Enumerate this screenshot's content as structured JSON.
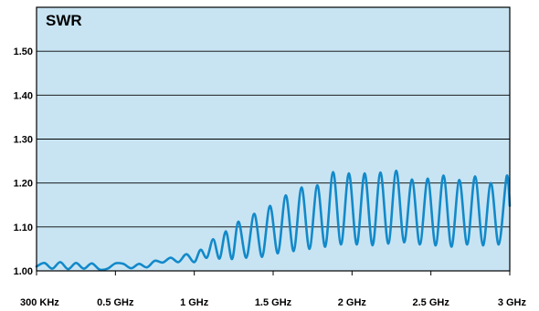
{
  "chart_data": {
    "type": "line",
    "title": "SWR",
    "xlabel": "",
    "ylabel": "",
    "x_tick_labels": [
      "300 KHz",
      "0.5 GHz",
      "1 GHz",
      "1.5 GHz",
      "2 GHz",
      "2.5 GHz",
      "3 GHz"
    ],
    "x_ticks": [
      0,
      0.5,
      1,
      1.5,
      2,
      2.5,
      3
    ],
    "xlim": [
      0,
      3
    ],
    "y_tick_labels": [
      "1.00",
      "1.10",
      "1.20",
      "1.30",
      "1.40",
      "1.50"
    ],
    "y_ticks": [
      1.0,
      1.1,
      1.2,
      1.3,
      1.4,
      1.5
    ],
    "ylim": [
      1.0,
      1.6
    ],
    "grid": "horizontal",
    "colors": {
      "plot_bg": "#c8e4f3",
      "line": "#1289c9",
      "border": "#000000"
    },
    "series": [
      {
        "x": [
          0.0,
          0.05,
          0.1,
          0.15,
          0.2,
          0.25,
          0.3,
          0.35,
          0.4,
          0.45,
          0.5,
          0.55,
          0.6,
          0.65,
          0.7,
          0.75,
          0.8,
          0.85,
          0.9,
          0.95,
          1.0,
          1.04,
          1.08,
          1.12,
          1.16,
          1.2,
          1.24,
          1.28,
          1.33,
          1.38,
          1.43,
          1.48,
          1.53,
          1.58,
          1.63,
          1.68,
          1.73,
          1.78,
          1.83,
          1.88,
          1.93,
          1.98,
          2.03,
          2.08,
          2.13,
          2.18,
          2.23,
          2.28,
          2.33,
          2.38,
          2.43,
          2.48,
          2.53,
          2.58,
          2.63,
          2.68,
          2.73,
          2.78,
          2.83,
          2.88,
          2.93,
          2.98,
          3.0
        ],
        "y": [
          1.01,
          1.018,
          1.005,
          1.02,
          1.004,
          1.018,
          1.005,
          1.017,
          1.003,
          1.005,
          1.017,
          1.016,
          1.006,
          1.016,
          1.008,
          1.023,
          1.019,
          1.03,
          1.02,
          1.038,
          1.02,
          1.048,
          1.03,
          1.072,
          1.028,
          1.09,
          1.027,
          1.112,
          1.03,
          1.13,
          1.032,
          1.148,
          1.04,
          1.172,
          1.045,
          1.19,
          1.05,
          1.195,
          1.055,
          1.225,
          1.06,
          1.222,
          1.06,
          1.222,
          1.058,
          1.224,
          1.062,
          1.228,
          1.065,
          1.208,
          1.06,
          1.21,
          1.058,
          1.217,
          1.055,
          1.207,
          1.06,
          1.215,
          1.058,
          1.2,
          1.06,
          1.215,
          1.148
        ]
      }
    ]
  }
}
